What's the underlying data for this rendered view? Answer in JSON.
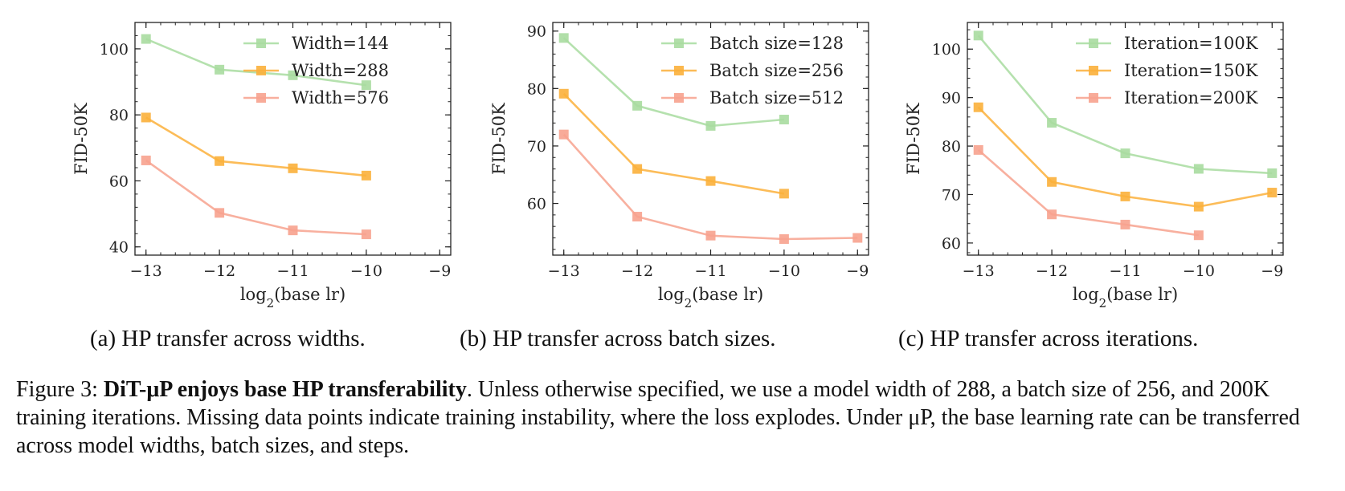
{
  "chart_data": [
    {
      "type": "line",
      "xlabel": "log2(base lr)",
      "ylabel": "FID-50K",
      "xlim": [
        -13.15,
        -8.85
      ],
      "ylim": [
        37.5,
        108
      ],
      "xticks": [
        -13,
        -12,
        -11,
        -10,
        -9
      ],
      "yticks": [
        40,
        60,
        80,
        100
      ],
      "legend_position": "top-right",
      "caption": "(a) HP transfer across widths.",
      "series": [
        {
          "name": "Width=144",
          "color": "#a8dca0",
          "x": [
            -13,
            -12,
            -11,
            -10
          ],
          "y": [
            103,
            93.7,
            92,
            89
          ]
        },
        {
          "name": "Width=288",
          "color": "#fbb03b",
          "x": [
            -13,
            -12,
            -11,
            -10
          ],
          "y": [
            79.2,
            66,
            63.8,
            61.6
          ]
        },
        {
          "name": "Width=576",
          "color": "#f7a28e",
          "x": [
            -13,
            -12,
            -11,
            -10
          ],
          "y": [
            66.2,
            50.3,
            45,
            43.8
          ]
        }
      ]
    },
    {
      "type": "line",
      "xlabel": "log2(base lr)",
      "ylabel": "FID-50K",
      "xlim": [
        -13.15,
        -8.85
      ],
      "ylim": [
        51,
        91.5
      ],
      "xticks": [
        -13,
        -12,
        -11,
        -10,
        -9
      ],
      "yticks": [
        60,
        70,
        80,
        90
      ],
      "legend_position": "top-right",
      "caption": "(b) HP transfer across batch sizes.",
      "series": [
        {
          "name": "Batch size=128",
          "color": "#a8dca0",
          "x": [
            -13,
            -12,
            -11,
            -10
          ],
          "y": [
            88.8,
            77,
            73.5,
            74.6
          ]
        },
        {
          "name": "Batch size=256",
          "color": "#fbb03b",
          "x": [
            -13,
            -12,
            -11,
            -10
          ],
          "y": [
            79.1,
            66,
            63.9,
            61.7
          ]
        },
        {
          "name": "Batch size=512",
          "color": "#f7a28e",
          "x": [
            -13,
            -12,
            -11,
            -10,
            -9
          ],
          "y": [
            72,
            57.7,
            54.4,
            53.8,
            54
          ]
        }
      ]
    },
    {
      "type": "line",
      "xlabel": "log2(base lr)",
      "ylabel": "FID-50K",
      "xlim": [
        -13.15,
        -8.85
      ],
      "ylim": [
        57.5,
        105.5
      ],
      "xticks": [
        -13,
        -12,
        -11,
        -10,
        -9
      ],
      "yticks": [
        60,
        70,
        80,
        90,
        100
      ],
      "legend_position": "top-right",
      "caption": "(c) HP transfer across iterations.",
      "series": [
        {
          "name": "Iteration=100K",
          "color": "#a8dca0",
          "x": [
            -13,
            -12,
            -11,
            -10,
            -9
          ],
          "y": [
            102.8,
            84.8,
            78.5,
            75.3,
            74.4
          ]
        },
        {
          "name": "Iteration=150K",
          "color": "#fbb03b",
          "x": [
            -13,
            -12,
            -11,
            -10,
            -9
          ],
          "y": [
            88,
            72.6,
            69.6,
            67.5,
            70.4
          ]
        },
        {
          "name": "Iteration=200K",
          "color": "#f7a28e",
          "x": [
            -13,
            -12,
            -11,
            -10
          ],
          "y": [
            79.2,
            65.9,
            63.8,
            61.6
          ]
        }
      ]
    }
  ],
  "caption": {
    "prefix": "Figure 3: ",
    "bold": "DiT-μP enjoys base HP transferability",
    "rest": ". Unless otherwise specified, we use a model width of 288, a batch size of 256, and 200K training iterations. Missing data points indicate training instability, where the loss explodes. Under μP, the base learning rate can be transferred across model widths, batch sizes, and steps."
  }
}
